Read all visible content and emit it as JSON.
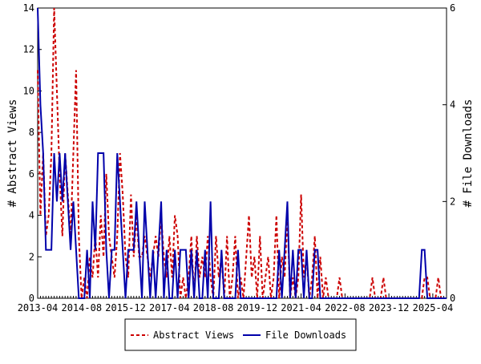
{
  "chart_data": {
    "type": "line",
    "categories": [
      "2013-04",
      null,
      null,
      null,
      null,
      null,
      null,
      null,
      null,
      null,
      null,
      null,
      null,
      null,
      null,
      null,
      "2014-08",
      null,
      null,
      null,
      null,
      null,
      null,
      null,
      null,
      null,
      null,
      null,
      null,
      null,
      null,
      null,
      "2015-12",
      null,
      null,
      null,
      null,
      null,
      null,
      null,
      null,
      null,
      null,
      null,
      null,
      null,
      null,
      null,
      "2017-04",
      null,
      null,
      null,
      null,
      null,
      null,
      null,
      null,
      null,
      null,
      null,
      null,
      null,
      null,
      null,
      "2018-08",
      null,
      null,
      null,
      null,
      null,
      null,
      null,
      null,
      null,
      null,
      null,
      null,
      null,
      null,
      null,
      "2019-12",
      null,
      null,
      null,
      null,
      null,
      null,
      null,
      null,
      null,
      null,
      null,
      null,
      null,
      null,
      null,
      "2021-04",
      null,
      null,
      null,
      null,
      null,
      null,
      null,
      null,
      null,
      null,
      null,
      null,
      null,
      null,
      null,
      "2022-08",
      null,
      null,
      null,
      null,
      null,
      null,
      null,
      null,
      null,
      null,
      null,
      null,
      null,
      null,
      null,
      "2023-12",
      null,
      null,
      null,
      null,
      null,
      null,
      null,
      null,
      null,
      null,
      null,
      null,
      null,
      null,
      null,
      "2025-04",
      null,
      null,
      null,
      null,
      null
    ],
    "ylabel": "# Abstract Views",
    "y2label": "# File Downloads",
    "ylim": [
      0,
      14
    ],
    "yticks": [
      0,
      2,
      4,
      6,
      8,
      10,
      12,
      14
    ],
    "y2lim": [
      0,
      6
    ],
    "y2ticks": [
      0,
      2,
      4,
      6
    ],
    "legend": "bottom",
    "series": [
      {
        "name": "Abstract Views",
        "color": "#cc0000",
        "dash": true,
        "values": [
          11,
          4,
          7,
          3,
          4,
          7,
          14,
          10,
          6,
          3,
          7,
          5,
          3,
          7,
          11,
          3,
          0,
          1,
          0,
          2,
          1,
          3,
          1,
          4,
          2,
          6,
          3,
          2,
          1,
          3,
          7,
          5,
          2,
          1,
          5,
          2,
          4,
          2,
          2,
          3,
          2,
          1,
          2,
          3,
          2,
          4,
          2,
          1,
          3,
          1,
          4,
          3,
          0,
          1,
          0,
          1,
          3,
          0,
          3,
          1,
          2,
          1,
          3,
          1,
          0,
          3,
          1,
          2,
          0,
          3,
          0,
          1,
          3,
          0,
          1,
          0,
          2,
          4,
          1,
          2,
          0,
          3,
          0,
          1,
          2,
          0,
          1,
          4,
          0,
          2,
          1,
          4,
          0,
          1,
          0,
          1,
          5,
          1,
          2,
          0,
          1,
          3,
          0,
          2,
          0,
          1,
          0,
          0,
          0,
          0,
          1,
          0,
          0,
          0,
          0,
          0,
          0,
          0,
          0,
          0,
          0,
          0,
          1,
          0,
          0,
          0,
          1,
          0,
          0,
          0,
          0,
          0,
          0,
          0,
          0,
          0,
          0,
          0,
          0,
          0,
          0,
          1,
          1,
          0,
          0,
          0,
          1,
          0,
          0,
          0
        ]
      },
      {
        "name": "File Downloads",
        "color": "#0000aa",
        "axis": "y2",
        "values": [
          6,
          4,
          3,
          1,
          1,
          1,
          3,
          2,
          3,
          2,
          3,
          2,
          1,
          2,
          1,
          0,
          0,
          0,
          1,
          0,
          2,
          1,
          3,
          3,
          3,
          1,
          0,
          1,
          1,
          3,
          2,
          1,
          0,
          1,
          1,
          1,
          2,
          1,
          0,
          2,
          1,
          0,
          1,
          0,
          1,
          2,
          0,
          1,
          0,
          0,
          1,
          0,
          1,
          1,
          1,
          0,
          1,
          0,
          1,
          0,
          0,
          1,
          0,
          2,
          0,
          0,
          0,
          1,
          0,
          0,
          0,
          0,
          0,
          1,
          0,
          0,
          0,
          0,
          0,
          0,
          0,
          0,
          0,
          0,
          0,
          0,
          0,
          0,
          1,
          0,
          1,
          2,
          0,
          1,
          0,
          1,
          1,
          0,
          1,
          0,
          0,
          1,
          1,
          0,
          0,
          0,
          0,
          0,
          0,
          0,
          0,
          0,
          0,
          0,
          0,
          0,
          0,
          0,
          0,
          0,
          0,
          0,
          0,
          0,
          0,
          0,
          0,
          0,
          0,
          0,
          0,
          0,
          0,
          0,
          0,
          0,
          0,
          0,
          0,
          0,
          1,
          1,
          0,
          0,
          0,
          0,
          0,
          0,
          0,
          0
        ]
      }
    ]
  }
}
